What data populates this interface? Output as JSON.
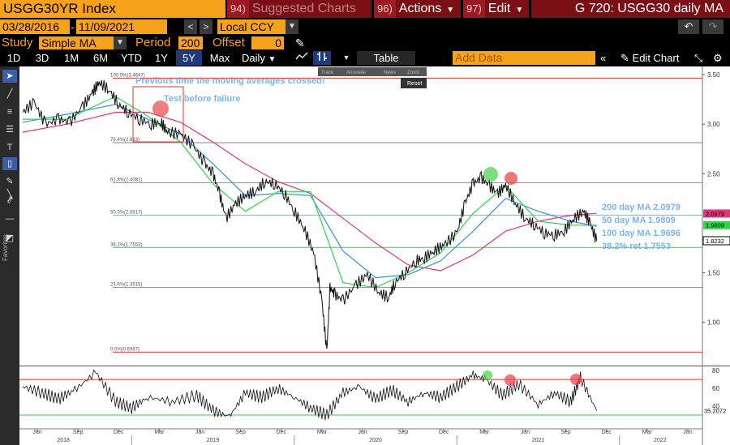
{
  "header": {
    "ticker": "USGG30YR Index",
    "suggested_num": "94)",
    "suggested_label": "Suggested Charts",
    "actions_num": "96)",
    "actions_label": "Actions",
    "edit_num": "97)",
    "edit_label": "Edit",
    "graph_title": "G 720: USGG30 daily MA"
  },
  "range": {
    "start": "03/28/2016",
    "end": "11/09/2021",
    "currency": "Local CCY",
    "prev_icon": "chevron-left-icon",
    "next_icon": "chevron-right-icon",
    "undo_icon": "undo-icon",
    "redo_icon": "redo-icon"
  },
  "study": {
    "label": "Study",
    "type": "Simple MA",
    "period_label": "Period",
    "period": "200",
    "offset_label": "Offset",
    "offset": "0"
  },
  "periods": [
    "1D",
    "3D",
    "1M",
    "6M",
    "YTD",
    "1Y",
    "5Y",
    "Max"
  ],
  "active_period": "5Y",
  "frequency": "Daily",
  "toolbar": {
    "table_label": "Table",
    "add_data_placeholder": "Add Data",
    "edit_chart_label": "Edit Chart"
  },
  "float_toolbar": {
    "track": "Track",
    "annotate": "Annotate",
    "news": "News",
    "zoom": "Zoom",
    "reset": "Reset"
  },
  "left_toolbar_label": "Favorites",
  "colors": {
    "price": "#ffffff",
    "ma200": "#e0357a",
    "ma50": "#2fd44a",
    "ma100": "#3a8fe0",
    "annotation": "#7cb4ec",
    "fib_red": "#e0352b",
    "fib_green": "#37d33e",
    "fib_gray": "#888888",
    "fib_cyan": "#3ad0e8"
  },
  "annotations": {
    "crossed": "Previous time the moving averages crossed!",
    "test": "Test before failure",
    "ma200_label": "200 day MA 2.0979",
    "ma50_label": "50 day MA 1.9809",
    "ma100_label": "100 day MA 1.9696",
    "ret_label": "38.2% ret 1.7553"
  },
  "chart_data": [
    {
      "type": "line",
      "title": "",
      "x_range": [
        "2018-04",
        "2022-08"
      ],
      "ylim": [
        0.62,
        3.55
      ],
      "y_ticks": [
        "3.50",
        "3.00",
        "2.50",
        "1.50",
        "1.00"
      ],
      "fib_levels": [
        {
          "label": "100.0%(3.4647)",
          "value": 3.4647,
          "color": "#e0352b"
        },
        {
          "label": "76.4%(2.813)",
          "value": 2.813,
          "color": "#888888"
        },
        {
          "label": "61.8%(2.4081)",
          "value": 2.4081,
          "color": "#37d33e"
        },
        {
          "label": "50.0%(2.0817)",
          "value": 2.0817,
          "color": "#3ad0e8"
        },
        {
          "label": "38.2%(1.7553)",
          "value": 1.7553,
          "color": "#37d33e"
        },
        {
          "label": "23.6%(1.3515)",
          "value": 1.3515,
          "color": "#888888"
        },
        {
          "label": "0.0%(0.6987)",
          "value": 0.6987,
          "color": "#e0352b"
        }
      ],
      "last_values": [
        {
          "label": "2.0979",
          "value": 2.0979,
          "color": "#e0357a"
        },
        {
          "label": "1.9809",
          "value": 1.9809,
          "color": "#2fd44a"
        },
        {
          "label": "1.8232",
          "value": 1.8232,
          "color": "#ffffff"
        }
      ],
      "series": [
        {
          "id": "price",
          "t": [
            2018.33,
            2018.4,
            2018.47,
            2018.55,
            2018.62,
            2018.7,
            2018.76,
            2018.8,
            2018.86,
            2018.92,
            2018.98,
            2019.05,
            2019.12,
            2019.18,
            2019.22,
            2019.3,
            2019.38,
            2019.45,
            2019.5,
            2019.54,
            2019.58,
            2019.64,
            2019.7,
            2019.76,
            2019.82,
            2019.88,
            2019.94,
            2020.0,
            2020.06,
            2020.12,
            2020.17,
            2020.2,
            2020.22,
            2020.25,
            2020.3,
            2020.38,
            2020.45,
            2020.52,
            2020.58,
            2020.62,
            2020.68,
            2020.75,
            2020.8,
            2020.86,
            2020.92,
            2021.0,
            2021.05,
            2021.1,
            2021.15,
            2021.2,
            2021.25,
            2021.3,
            2021.36,
            2021.42,
            2021.48,
            2021.54,
            2021.6,
            2021.66,
            2021.72,
            2021.78,
            2021.82,
            2021.86
          ],
          "values": [
            3.12,
            3.22,
            3.0,
            3.05,
            3.02,
            3.18,
            3.32,
            3.42,
            3.35,
            3.2,
            3.12,
            3.05,
            3.0,
            3.02,
            2.92,
            2.9,
            2.78,
            2.6,
            2.5,
            2.3,
            2.05,
            2.2,
            2.28,
            2.32,
            2.42,
            2.4,
            2.3,
            2.12,
            1.95,
            1.7,
            1.22,
            0.7,
            1.35,
            1.28,
            1.22,
            1.38,
            1.48,
            1.3,
            1.25,
            1.4,
            1.5,
            1.62,
            1.65,
            1.72,
            1.78,
            1.9,
            2.2,
            2.4,
            2.46,
            2.38,
            2.3,
            2.38,
            2.2,
            2.05,
            1.98,
            1.9,
            1.88,
            1.92,
            2.05,
            2.12,
            2.0,
            1.82
          ]
        },
        {
          "id": "ma200",
          "t": [
            2018.33,
            2018.6,
            2018.9,
            2019.1,
            2019.3,
            2019.5,
            2019.7,
            2019.9,
            2020.1,
            2020.3,
            2020.5,
            2020.7,
            2020.9,
            2021.1,
            2021.3,
            2021.5,
            2021.7,
            2021.86
          ],
          "values": [
            2.92,
            3.0,
            3.12,
            3.12,
            3.02,
            2.82,
            2.6,
            2.42,
            2.3,
            2.05,
            1.8,
            1.58,
            1.52,
            1.68,
            1.92,
            2.02,
            2.08,
            2.1
          ]
        },
        {
          "id": "ma100",
          "t": [
            2018.33,
            2018.6,
            2018.9,
            2019.1,
            2019.3,
            2019.5,
            2019.7,
            2019.9,
            2020.1,
            2020.3,
            2020.5,
            2020.7,
            2020.9,
            2021.1,
            2021.3,
            2021.5,
            2021.7,
            2021.86
          ],
          "values": [
            3.02,
            3.1,
            3.2,
            3.05,
            2.9,
            2.6,
            2.28,
            2.3,
            2.28,
            1.72,
            1.45,
            1.48,
            1.62,
            1.92,
            2.25,
            2.12,
            2.02,
            1.97
          ]
        },
        {
          "id": "ma50",
          "t": [
            2018.33,
            2018.6,
            2018.9,
            2019.1,
            2019.3,
            2019.5,
            2019.7,
            2019.9,
            2020.1,
            2020.3,
            2020.5,
            2020.7,
            2020.9,
            2021.1,
            2021.3,
            2021.5,
            2021.7,
            2021.86
          ],
          "values": [
            3.05,
            3.05,
            3.28,
            3.08,
            2.82,
            2.4,
            2.12,
            2.32,
            2.32,
            1.4,
            1.35,
            1.5,
            1.7,
            2.1,
            2.38,
            2.02,
            1.98,
            1.98
          ]
        }
      ]
    },
    {
      "type": "line",
      "title": "",
      "ylim": [
        20,
        82
      ],
      "y_ticks": [
        "80",
        "60",
        "40"
      ],
      "last_value": "35.2072",
      "upper_band": 70,
      "lower_band": 30,
      "x_tick_labels": [
        "Jun",
        "Sep",
        "Dec",
        "Mar",
        "Jun",
        "Sep",
        "Dec",
        "Mar",
        "Jun",
        "Sep",
        "Dec",
        "Mar",
        "Jun",
        "Sep",
        "Dec",
        "Mar",
        "Jun"
      ],
      "x_tick_pos": [
        2018.42,
        2018.67,
        2018.92,
        2019.17,
        2019.42,
        2019.67,
        2019.92,
        2020.17,
        2020.42,
        2020.67,
        2020.92,
        2021.17,
        2021.42,
        2021.67,
        2021.92,
        2022.17,
        2022.42
      ],
      "year_labels": [
        "2018",
        "2019",
        "2020",
        "2021",
        "2022"
      ],
      "year_pos": [
        2018.58,
        2019.5,
        2020.5,
        2021.5,
        2022.25
      ],
      "series": [
        {
          "id": "rsi",
          "t": [
            2018.33,
            2018.45,
            2018.55,
            2018.65,
            2018.78,
            2018.9,
            2019.0,
            2019.1,
            2019.25,
            2019.4,
            2019.5,
            2019.6,
            2019.7,
            2019.8,
            2019.9,
            2020.0,
            2020.1,
            2020.2,
            2020.3,
            2020.4,
            2020.5,
            2020.6,
            2020.7,
            2020.8,
            2020.9,
            2021.0,
            2021.1,
            2021.18,
            2021.28,
            2021.38,
            2021.5,
            2021.6,
            2021.7,
            2021.76,
            2021.86
          ],
          "values": [
            62,
            55,
            48,
            58,
            78,
            45,
            38,
            50,
            45,
            52,
            35,
            28,
            55,
            50,
            60,
            50,
            38,
            30,
            55,
            62,
            48,
            58,
            45,
            55,
            50,
            62,
            75,
            70,
            52,
            65,
            42,
            55,
            45,
            72,
            35
          ]
        }
      ]
    }
  ]
}
